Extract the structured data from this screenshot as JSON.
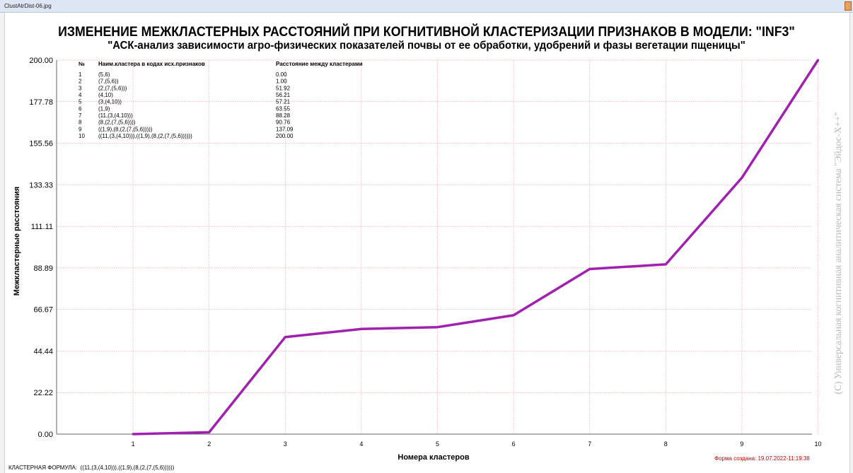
{
  "window": {
    "title": "ClustAtrDist-06.jpg"
  },
  "footer": {
    "formula_label": "КЛАСТЕРНАЯ ФОРМУЛА:",
    "formula": "((11,(3,(4,10))),((1,9),(8,(2,(7,(5,6))))))",
    "created": "Форма создана: 19.07.2022-11:19:38"
  },
  "watermark": "(C) Универсальная когнитивная аналитическая система \"Эйдос-Х++\"",
  "table": {
    "headers": [
      "№",
      "Наим.кластера в кодах исх.признаков",
      "Расстояние между кластерами"
    ],
    "rows": [
      [
        "1",
        "(5,6)",
        "0.00"
      ],
      [
        "2",
        "(7,(5,6))",
        "1.00"
      ],
      [
        "3",
        "(2,(7,(5,6)))",
        "51.92"
      ],
      [
        "4",
        "(4,10)",
        "56.21"
      ],
      [
        "5",
        "(3,(4,10))",
        "57.21"
      ],
      [
        "6",
        "(1,9)",
        "63.55"
      ],
      [
        "7",
        "(11,(3,(4,10)))",
        "88.28"
      ],
      [
        "8",
        "(8,(2,(7,(5,6))))",
        "90.76"
      ],
      [
        "9",
        "((1,9),(8,(2,(7,(5,6)))))",
        "137.09"
      ],
      [
        "10",
        "((11,(3,(4,10))),((1,9),(8,(2,(7,(5,6))))))",
        "200.00"
      ]
    ]
  },
  "chart_data": {
    "type": "line",
    "title": "ИЗМЕНЕНИЕ МЕЖКЛАСТЕРНЫХ РАССТОЯНИЙ ПРИ КОГНИТИВНОЙ КЛАСТЕРИЗАЦИИ ПРИЗНАКОВ В МОДЕЛИ: \"INF3\"",
    "subtitle": "\"АСК-анализ зависимости агро-физических показателей почвы от ее обработки, удобрений и фазы вегетации пщеницы\"",
    "xlabel": "Номера кластеров",
    "ylabel": "Межкластерные расстояния",
    "x": [
      1,
      2,
      3,
      4,
      5,
      6,
      7,
      8,
      9,
      10
    ],
    "y": [
      0.0,
      1.0,
      51.92,
      56.21,
      57.21,
      63.55,
      88.28,
      90.76,
      137.09,
      200.0
    ],
    "ylim": [
      0,
      200
    ],
    "yticks": [
      "0.00",
      "22.22",
      "44.44",
      "66.67",
      "88.89",
      "111.11",
      "133.33",
      "155.56",
      "177.78",
      "200.00"
    ],
    "xticks": [
      "1",
      "2",
      "3",
      "4",
      "5",
      "6",
      "7",
      "8",
      "9",
      "10"
    ],
    "grid": true,
    "line_color": "#a020b0"
  }
}
